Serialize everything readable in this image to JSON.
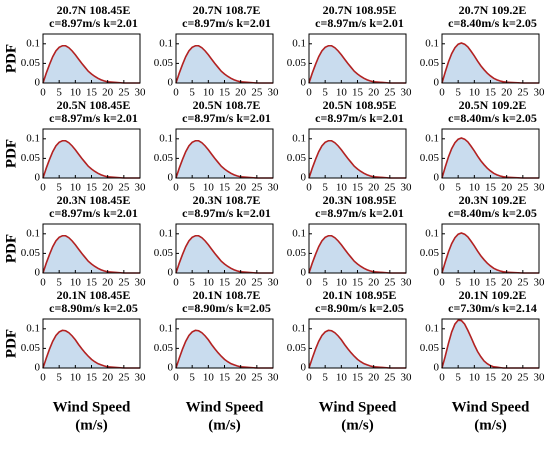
{
  "chart_data": [
    {
      "type": "area",
      "title": "20.7N 108.45E",
      "subtitle": "c=8.97m/s  k=2.01",
      "ylabel": "PDF",
      "x": [
        0,
        1,
        2,
        3,
        4,
        5,
        6,
        7,
        8,
        9,
        10,
        11,
        12,
        13,
        14,
        15,
        16,
        17,
        18,
        19,
        20,
        25,
        30
      ],
      "values": [
        0,
        0.025,
        0.047,
        0.067,
        0.082,
        0.091,
        0.095,
        0.095,
        0.09,
        0.082,
        0.072,
        0.061,
        0.05,
        0.04,
        0.03,
        0.023,
        0.017,
        0.012,
        0.008,
        0.005,
        0.003,
        0,
        0
      ],
      "color": "#b22222",
      "fill": "#c9dcee",
      "xlim": [
        0,
        30
      ],
      "ylim": [
        0,
        0.125
      ],
      "xticks": [
        0,
        5,
        10,
        15,
        20,
        25,
        30
      ],
      "yticks": [
        0,
        0.05,
        0.1
      ]
    },
    {
      "type": "area",
      "title": "20.7N 108.7E",
      "subtitle": "c=8.97m/s  k=2.01",
      "x": [
        0,
        1,
        2,
        3,
        4,
        5,
        6,
        7,
        8,
        9,
        10,
        11,
        12,
        13,
        14,
        15,
        16,
        17,
        18,
        19,
        20,
        25,
        30
      ],
      "values": [
        0,
        0.025,
        0.047,
        0.067,
        0.082,
        0.091,
        0.095,
        0.095,
        0.09,
        0.082,
        0.072,
        0.061,
        0.05,
        0.04,
        0.03,
        0.023,
        0.017,
        0.012,
        0.008,
        0.005,
        0.003,
        0,
        0
      ],
      "color": "#b22222",
      "fill": "#c9dcee",
      "xlim": [
        0,
        30
      ],
      "ylim": [
        0,
        0.125
      ],
      "xticks": [
        0,
        5,
        10,
        15,
        20,
        25,
        30
      ],
      "yticks": [
        0,
        0.05,
        0.1
      ]
    },
    {
      "type": "area",
      "title": "20.7N 108.95E",
      "subtitle": "c=8.97m/s  k=2.01",
      "x": [
        0,
        1,
        2,
        3,
        4,
        5,
        6,
        7,
        8,
        9,
        10,
        11,
        12,
        13,
        14,
        15,
        16,
        17,
        18,
        19,
        20,
        25,
        30
      ],
      "values": [
        0,
        0.025,
        0.047,
        0.067,
        0.082,
        0.091,
        0.095,
        0.095,
        0.09,
        0.082,
        0.072,
        0.061,
        0.05,
        0.04,
        0.03,
        0.023,
        0.017,
        0.012,
        0.008,
        0.005,
        0.003,
        0,
        0
      ],
      "color": "#b22222",
      "fill": "#c9dcee",
      "xlim": [
        0,
        30
      ],
      "ylim": [
        0,
        0.125
      ],
      "xticks": [
        0,
        5,
        10,
        15,
        20,
        25,
        30
      ],
      "yticks": [
        0,
        0.05,
        0.1
      ]
    },
    {
      "type": "area",
      "title": "20.7N 109.2E",
      "subtitle": "c=8.40m/s  k=2.05",
      "x": [
        0,
        1,
        2,
        3,
        4,
        5,
        6,
        7,
        8,
        9,
        10,
        11,
        12,
        13,
        14,
        15,
        16,
        17,
        18,
        19,
        20,
        25,
        30
      ],
      "values": [
        0,
        0.028,
        0.054,
        0.075,
        0.09,
        0.099,
        0.102,
        0.099,
        0.092,
        0.081,
        0.069,
        0.056,
        0.044,
        0.034,
        0.025,
        0.018,
        0.012,
        0.008,
        0.005,
        0.003,
        0.002,
        0,
        0
      ],
      "color": "#b22222",
      "fill": "#c9dcee",
      "xlim": [
        0,
        30
      ],
      "ylim": [
        0,
        0.125
      ],
      "xticks": [
        0,
        5,
        10,
        15,
        20,
        25,
        30
      ],
      "yticks": [
        0,
        0.05,
        0.1
      ]
    },
    {
      "type": "area",
      "title": "20.5N 108.45E",
      "subtitle": "c=8.97m/s  k=2.01",
      "ylabel": "PDF",
      "x": [
        0,
        1,
        2,
        3,
        4,
        5,
        6,
        7,
        8,
        9,
        10,
        11,
        12,
        13,
        14,
        15,
        16,
        17,
        18,
        19,
        20,
        25,
        30
      ],
      "values": [
        0,
        0.025,
        0.047,
        0.067,
        0.082,
        0.091,
        0.095,
        0.095,
        0.09,
        0.082,
        0.072,
        0.061,
        0.05,
        0.04,
        0.03,
        0.023,
        0.017,
        0.012,
        0.008,
        0.005,
        0.003,
        0,
        0
      ],
      "color": "#b22222",
      "fill": "#c9dcee",
      "xlim": [
        0,
        30
      ],
      "ylim": [
        0,
        0.125
      ],
      "xticks": [
        0,
        5,
        10,
        15,
        20,
        25,
        30
      ],
      "yticks": [
        0,
        0.05,
        0.1
      ]
    },
    {
      "type": "area",
      "title": "20.5N 108.7E",
      "subtitle": "c=8.97m/s  k=2.01",
      "x": [
        0,
        1,
        2,
        3,
        4,
        5,
        6,
        7,
        8,
        9,
        10,
        11,
        12,
        13,
        14,
        15,
        16,
        17,
        18,
        19,
        20,
        25,
        30
      ],
      "values": [
        0,
        0.025,
        0.047,
        0.067,
        0.082,
        0.091,
        0.095,
        0.095,
        0.09,
        0.082,
        0.072,
        0.061,
        0.05,
        0.04,
        0.03,
        0.023,
        0.017,
        0.012,
        0.008,
        0.005,
        0.003,
        0,
        0
      ],
      "color": "#b22222",
      "fill": "#c9dcee",
      "xlim": [
        0,
        30
      ],
      "ylim": [
        0,
        0.125
      ],
      "xticks": [
        0,
        5,
        10,
        15,
        20,
        25,
        30
      ],
      "yticks": [
        0,
        0.05,
        0.1
      ]
    },
    {
      "type": "area",
      "title": "20.5N 108.95E",
      "subtitle": "c=8.97m/s  k=2.01",
      "x": [
        0,
        1,
        2,
        3,
        4,
        5,
        6,
        7,
        8,
        9,
        10,
        11,
        12,
        13,
        14,
        15,
        16,
        17,
        18,
        19,
        20,
        25,
        30
      ],
      "values": [
        0,
        0.025,
        0.047,
        0.067,
        0.082,
        0.091,
        0.095,
        0.095,
        0.09,
        0.082,
        0.072,
        0.061,
        0.05,
        0.04,
        0.03,
        0.023,
        0.017,
        0.012,
        0.008,
        0.005,
        0.003,
        0,
        0
      ],
      "color": "#b22222",
      "fill": "#c9dcee",
      "xlim": [
        0,
        30
      ],
      "ylim": [
        0,
        0.125
      ],
      "xticks": [
        0,
        5,
        10,
        15,
        20,
        25,
        30
      ],
      "yticks": [
        0,
        0.05,
        0.1
      ]
    },
    {
      "type": "area",
      "title": "20.5N 109.2E",
      "subtitle": "c=8.40m/s  k=2.05",
      "x": [
        0,
        1,
        2,
        3,
        4,
        5,
        6,
        7,
        8,
        9,
        10,
        11,
        12,
        13,
        14,
        15,
        16,
        17,
        18,
        19,
        20,
        25,
        30
      ],
      "values": [
        0,
        0.028,
        0.054,
        0.075,
        0.09,
        0.099,
        0.102,
        0.099,
        0.092,
        0.081,
        0.069,
        0.056,
        0.044,
        0.034,
        0.025,
        0.018,
        0.012,
        0.008,
        0.005,
        0.003,
        0.002,
        0,
        0
      ],
      "color": "#b22222",
      "fill": "#c9dcee",
      "xlim": [
        0,
        30
      ],
      "ylim": [
        0,
        0.125
      ],
      "xticks": [
        0,
        5,
        10,
        15,
        20,
        25,
        30
      ],
      "yticks": [
        0,
        0.05,
        0.1
      ]
    },
    {
      "type": "area",
      "title": "20.3N 108.45E",
      "subtitle": "c=8.97m/s  k=2.01",
      "ylabel": "PDF",
      "x": [
        0,
        1,
        2,
        3,
        4,
        5,
        6,
        7,
        8,
        9,
        10,
        11,
        12,
        13,
        14,
        15,
        16,
        17,
        18,
        19,
        20,
        25,
        30
      ],
      "values": [
        0,
        0.025,
        0.047,
        0.067,
        0.082,
        0.091,
        0.095,
        0.095,
        0.09,
        0.082,
        0.072,
        0.061,
        0.05,
        0.04,
        0.03,
        0.023,
        0.017,
        0.012,
        0.008,
        0.005,
        0.003,
        0,
        0
      ],
      "color": "#b22222",
      "fill": "#c9dcee",
      "xlim": [
        0,
        30
      ],
      "ylim": [
        0,
        0.125
      ],
      "xticks": [
        0,
        5,
        10,
        15,
        20,
        25,
        30
      ],
      "yticks": [
        0,
        0.05,
        0.1
      ]
    },
    {
      "type": "area",
      "title": "20.3N 108.7E",
      "subtitle": "c=8.97m/s  k=2.01",
      "x": [
        0,
        1,
        2,
        3,
        4,
        5,
        6,
        7,
        8,
        9,
        10,
        11,
        12,
        13,
        14,
        15,
        16,
        17,
        18,
        19,
        20,
        25,
        30
      ],
      "values": [
        0,
        0.025,
        0.047,
        0.067,
        0.082,
        0.091,
        0.095,
        0.095,
        0.09,
        0.082,
        0.072,
        0.061,
        0.05,
        0.04,
        0.03,
        0.023,
        0.017,
        0.012,
        0.008,
        0.005,
        0.003,
        0,
        0
      ],
      "color": "#b22222",
      "fill": "#c9dcee",
      "xlim": [
        0,
        30
      ],
      "ylim": [
        0,
        0.125
      ],
      "xticks": [
        0,
        5,
        10,
        15,
        20,
        25,
        30
      ],
      "yticks": [
        0,
        0.05,
        0.1
      ]
    },
    {
      "type": "area",
      "title": "20.3N 108.95E",
      "subtitle": "c=8.97m/s  k=2.01",
      "x": [
        0,
        1,
        2,
        3,
        4,
        5,
        6,
        7,
        8,
        9,
        10,
        11,
        12,
        13,
        14,
        15,
        16,
        17,
        18,
        19,
        20,
        25,
        30
      ],
      "values": [
        0,
        0.025,
        0.047,
        0.067,
        0.082,
        0.091,
        0.095,
        0.095,
        0.09,
        0.082,
        0.072,
        0.061,
        0.05,
        0.04,
        0.03,
        0.023,
        0.017,
        0.012,
        0.008,
        0.005,
        0.003,
        0,
        0
      ],
      "color": "#b22222",
      "fill": "#c9dcee",
      "xlim": [
        0,
        30
      ],
      "ylim": [
        0,
        0.125
      ],
      "xticks": [
        0,
        5,
        10,
        15,
        20,
        25,
        30
      ],
      "yticks": [
        0,
        0.05,
        0.1
      ]
    },
    {
      "type": "area",
      "title": "20.3N 109.2E",
      "subtitle": "c=8.40m/s  k=2.05",
      "x": [
        0,
        1,
        2,
        3,
        4,
        5,
        6,
        7,
        8,
        9,
        10,
        11,
        12,
        13,
        14,
        15,
        16,
        17,
        18,
        19,
        20,
        25,
        30
      ],
      "values": [
        0,
        0.028,
        0.054,
        0.075,
        0.09,
        0.099,
        0.102,
        0.099,
        0.092,
        0.081,
        0.069,
        0.056,
        0.044,
        0.034,
        0.025,
        0.018,
        0.012,
        0.008,
        0.005,
        0.003,
        0.002,
        0,
        0
      ],
      "color": "#b22222",
      "fill": "#c9dcee",
      "xlim": [
        0,
        30
      ],
      "ylim": [
        0,
        0.125
      ],
      "xticks": [
        0,
        5,
        10,
        15,
        20,
        25,
        30
      ],
      "yticks": [
        0,
        0.05,
        0.1
      ]
    },
    {
      "type": "area",
      "title": "20.1N 108.45E",
      "subtitle": "c=8.90m/s  k=2.05",
      "ylabel": "PDF",
      "xlabel": "Wind Speed",
      "xlabel_unit": "(m/s)",
      "x": [
        0,
        1,
        2,
        3,
        4,
        5,
        6,
        7,
        8,
        9,
        10,
        11,
        12,
        13,
        14,
        15,
        16,
        17,
        18,
        19,
        20,
        25,
        30
      ],
      "values": [
        0,
        0.025,
        0.048,
        0.068,
        0.083,
        0.092,
        0.096,
        0.095,
        0.09,
        0.082,
        0.072,
        0.06,
        0.049,
        0.039,
        0.03,
        0.022,
        0.016,
        0.011,
        0.008,
        0.005,
        0.003,
        0,
        0
      ],
      "color": "#b22222",
      "fill": "#c9dcee",
      "xlim": [
        0,
        30
      ],
      "ylim": [
        0,
        0.125
      ],
      "xticks": [
        0,
        5,
        10,
        15,
        20,
        25,
        30
      ],
      "yticks": [
        0,
        0.05,
        0.1
      ]
    },
    {
      "type": "area",
      "title": "20.1N 108.7E",
      "subtitle": "c=8.90m/s  k=2.05",
      "xlabel": "Wind Speed",
      "xlabel_unit": "(m/s)",
      "x": [
        0,
        1,
        2,
        3,
        4,
        5,
        6,
        7,
        8,
        9,
        10,
        11,
        12,
        13,
        14,
        15,
        16,
        17,
        18,
        19,
        20,
        25,
        30
      ],
      "values": [
        0,
        0.025,
        0.048,
        0.068,
        0.083,
        0.092,
        0.096,
        0.095,
        0.09,
        0.082,
        0.072,
        0.06,
        0.049,
        0.039,
        0.03,
        0.022,
        0.016,
        0.011,
        0.008,
        0.005,
        0.003,
        0,
        0
      ],
      "color": "#b22222",
      "fill": "#c9dcee",
      "xlim": [
        0,
        30
      ],
      "ylim": [
        0,
        0.125
      ],
      "xticks": [
        0,
        5,
        10,
        15,
        20,
        25,
        30
      ],
      "yticks": [
        0,
        0.05,
        0.1
      ]
    },
    {
      "type": "area",
      "title": "20.1N 108.95E",
      "subtitle": "c=8.90m/s  k=2.05",
      "xlabel": "Wind Speed",
      "xlabel_unit": "(m/s)",
      "x": [
        0,
        1,
        2,
        3,
        4,
        5,
        6,
        7,
        8,
        9,
        10,
        11,
        12,
        13,
        14,
        15,
        16,
        17,
        18,
        19,
        20,
        25,
        30
      ],
      "values": [
        0,
        0.025,
        0.048,
        0.068,
        0.083,
        0.092,
        0.096,
        0.095,
        0.09,
        0.082,
        0.072,
        0.06,
        0.049,
        0.039,
        0.03,
        0.022,
        0.016,
        0.011,
        0.008,
        0.005,
        0.003,
        0,
        0
      ],
      "color": "#b22222",
      "fill": "#c9dcee",
      "xlim": [
        0,
        30
      ],
      "ylim": [
        0,
        0.125
      ],
      "xticks": [
        0,
        5,
        10,
        15,
        20,
        25,
        30
      ],
      "yticks": [
        0,
        0.05,
        0.1
      ]
    },
    {
      "type": "area",
      "title": "20.1N 109.2E",
      "subtitle": "c=7.30m/s  k=2.14",
      "xlabel": "Wind Speed",
      "xlabel_unit": "(m/s)",
      "x": [
        0,
        1,
        2,
        3,
        4,
        5,
        6,
        7,
        8,
        9,
        10,
        11,
        12,
        13,
        14,
        15,
        16,
        17,
        18,
        19,
        20,
        25,
        30
      ],
      "values": [
        0,
        0.03,
        0.063,
        0.092,
        0.112,
        0.122,
        0.121,
        0.112,
        0.096,
        0.078,
        0.059,
        0.042,
        0.029,
        0.018,
        0.011,
        0.006,
        0.003,
        0.002,
        0.001,
        0,
        0,
        0,
        0
      ],
      "color": "#b22222",
      "fill": "#c9dcee",
      "xlim": [
        0,
        30
      ],
      "ylim": [
        0,
        0.125
      ],
      "xticks": [
        0,
        5,
        10,
        15,
        20,
        25,
        30
      ],
      "yticks": [
        0,
        0.05,
        0.1
      ]
    }
  ]
}
